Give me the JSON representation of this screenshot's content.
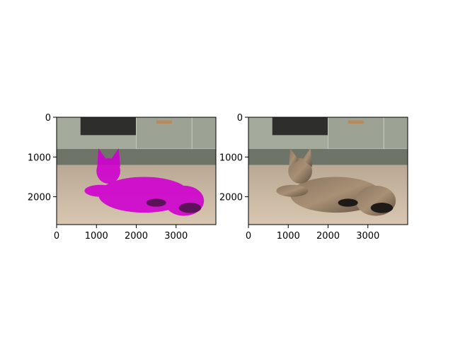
{
  "chart_data": [
    {
      "type": "image",
      "xlim": [
        0,
        4000
      ],
      "ylim": [
        2700,
        0
      ],
      "xticks": [
        0,
        1000,
        2000,
        3000
      ],
      "yticks": [
        0,
        1000,
        2000
      ],
      "overlay_color": "#d000d0"
    },
    {
      "type": "image",
      "xlim": [
        0,
        4000
      ],
      "ylim": [
        2700,
        0
      ],
      "xticks": [
        0,
        1000,
        2000,
        3000
      ],
      "yticks": [
        0,
        1000,
        2000
      ]
    }
  ]
}
